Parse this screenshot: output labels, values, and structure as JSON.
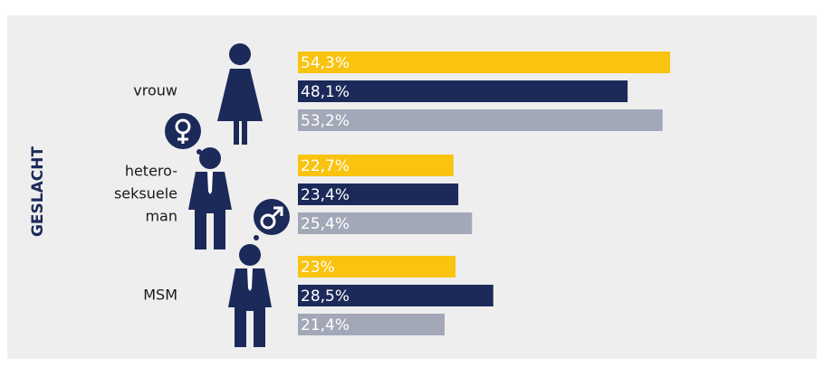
{
  "chart_data": {
    "type": "bar",
    "orientation": "horizontal",
    "axis_label": "GESLACHT",
    "categories": [
      [
        "vrouw"
      ],
      [
        "hetero-",
        "seksuele",
        "man"
      ],
      [
        "MSM"
      ]
    ],
    "series": [
      {
        "color": "#f9c30f",
        "values": [
          54.3,
          22.7,
          23
        ],
        "value_labels": [
          "54,3%",
          "22,7%",
          "23%"
        ]
      },
      {
        "color": "#1c2a5a",
        "values": [
          48.1,
          23.4,
          28.5
        ],
        "value_labels": [
          "48,1%",
          "23,4%",
          "28,5%"
        ]
      },
      {
        "color": "#a3a8b8",
        "values": [
          53.2,
          25.4,
          21.4
        ],
        "value_labels": [
          "53,2%",
          "25,4%",
          "21,4%"
        ]
      }
    ]
  }
}
